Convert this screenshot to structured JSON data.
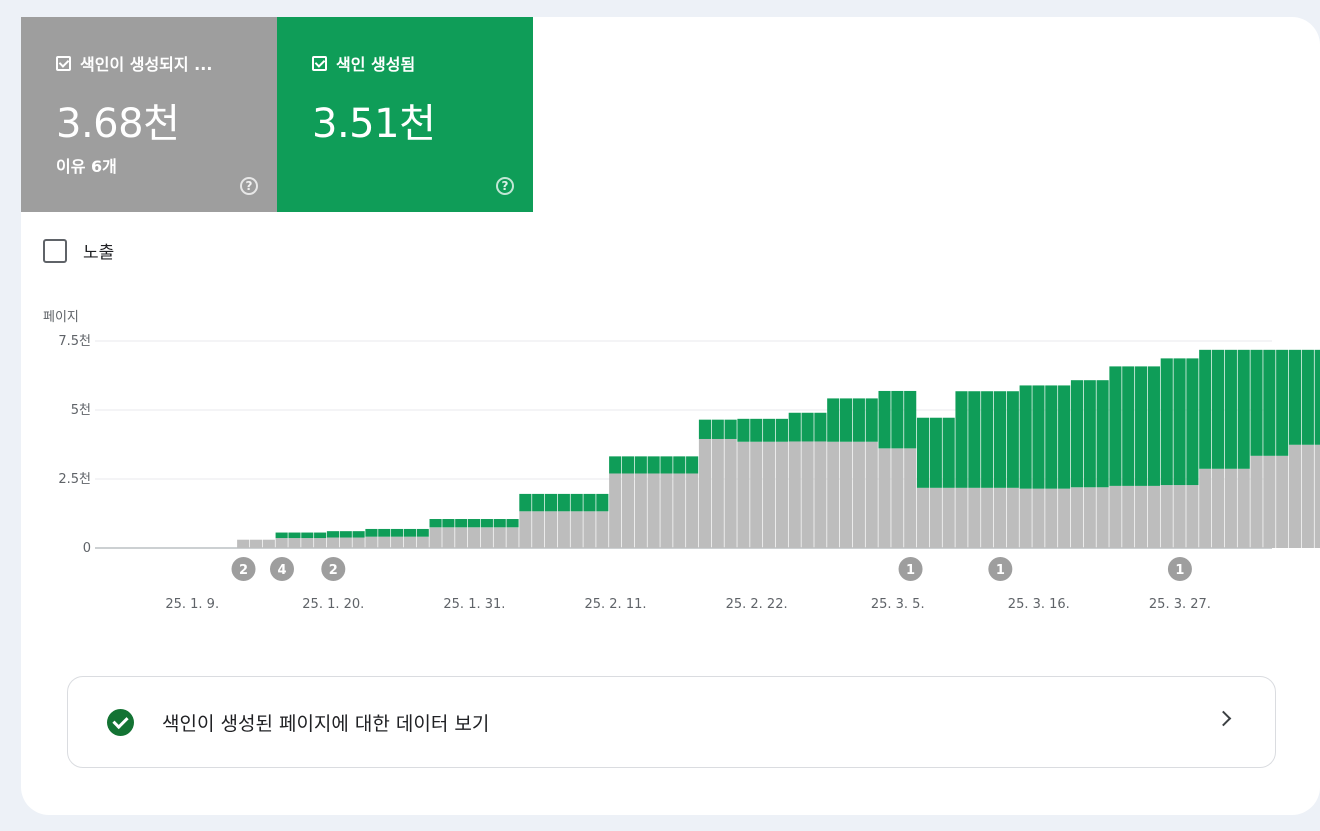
{
  "tiles": [
    {
      "label": "색인이 생성되지 ...",
      "value": "3.68천",
      "sub": "이유 6개",
      "color": "#9e9e9e",
      "help_icon": "help-circle-icon"
    },
    {
      "label": "색인 생성됨",
      "value": "3.51천",
      "sub": "",
      "color": "#0f9d58",
      "help_icon": "help-circle-icon"
    }
  ],
  "impressions_label": "노출",
  "link": {
    "label": "색인이 생성된 페이지에 대한 데이터 보기",
    "icon": "check-circle-icon",
    "arrow_icon": "chevron-right-icon"
  },
  "chart_data": {
    "type": "bar",
    "stacked": true,
    "ylabel": "페이지",
    "ylim": [
      0,
      7500
    ],
    "yticks": [
      {
        "value": 0,
        "label": "0"
      },
      {
        "value": 2500,
        "label": "2.5천"
      },
      {
        "value": 5000,
        "label": "5천"
      },
      {
        "value": 7500,
        "label": "7.5천"
      }
    ],
    "grid": true,
    "x_tick_labels": [
      "25. 1. 9.",
      "25. 1. 20.",
      "25. 1. 31.",
      "25. 2. 11.",
      "25. 2. 22.",
      "25. 3. 5.",
      "25. 3. 16.",
      "25. 3. 27."
    ],
    "x_tick_days": [
      7,
      18,
      29,
      40,
      51,
      62,
      73,
      84
    ],
    "colors": {
      "not_indexed": "#bdbdbd",
      "indexed": "#0f9d58"
    },
    "not_indexed": [
      0,
      0,
      0,
      0,
      0,
      0,
      0,
      0,
      0,
      0,
      0,
      300,
      300,
      300,
      360,
      360,
      360,
      360,
      380,
      380,
      380,
      410,
      410,
      410,
      410,
      410,
      750,
      750,
      750,
      750,
      750,
      750,
      750,
      1330,
      1330,
      1330,
      1330,
      1330,
      1330,
      1330,
      2700,
      2700,
      2700,
      2700,
      2700,
      2700,
      2700,
      3950,
      3950,
      3950,
      3850,
      3850,
      3850,
      3850,
      3860,
      3860,
      3860,
      3850,
      3850,
      3850,
      3850,
      3610,
      3610,
      3610,
      2180,
      2180,
      2180,
      2180,
      2180,
      2180,
      2180,
      2180,
      2150,
      2150,
      2150,
      2150,
      2200,
      2200,
      2200,
      2250,
      2250,
      2250,
      2250,
      2280,
      2280,
      2280,
      2870,
      2870,
      2870,
      2870,
      3340,
      3340,
      3340,
      3740,
      3740,
      3740,
      3740
    ],
    "indexed": [
      0,
      0,
      0,
      0,
      0,
      0,
      0,
      0,
      0,
      0,
      0,
      0,
      0,
      0,
      200,
      200,
      200,
      200,
      230,
      230,
      230,
      280,
      280,
      280,
      280,
      280,
      300,
      300,
      300,
      300,
      300,
      300,
      300,
      630,
      630,
      630,
      630,
      630,
      630,
      630,
      620,
      620,
      620,
      620,
      620,
      620,
      620,
      700,
      700,
      700,
      830,
      830,
      830,
      830,
      1040,
      1040,
      1040,
      1570,
      1570,
      1570,
      1570,
      2080,
      2080,
      2080,
      2540,
      2540,
      2540,
      3500,
      3500,
      3500,
      3500,
      3500,
      3740,
      3740,
      3740,
      3740,
      3880,
      3880,
      3880,
      4330,
      4330,
      4330,
      4330,
      4590,
      4590,
      4590,
      4310,
      4310,
      4310,
      4310,
      3840,
      3840,
      3840,
      3440,
      3440,
      3440,
      3440
    ],
    "annotations": [
      {
        "day": 11,
        "label": "2"
      },
      {
        "day": 14,
        "label": "4"
      },
      {
        "day": 18,
        "label": "2"
      },
      {
        "day": 63,
        "label": "1"
      },
      {
        "day": 70,
        "label": "1"
      },
      {
        "day": 84,
        "label": "1"
      }
    ]
  }
}
